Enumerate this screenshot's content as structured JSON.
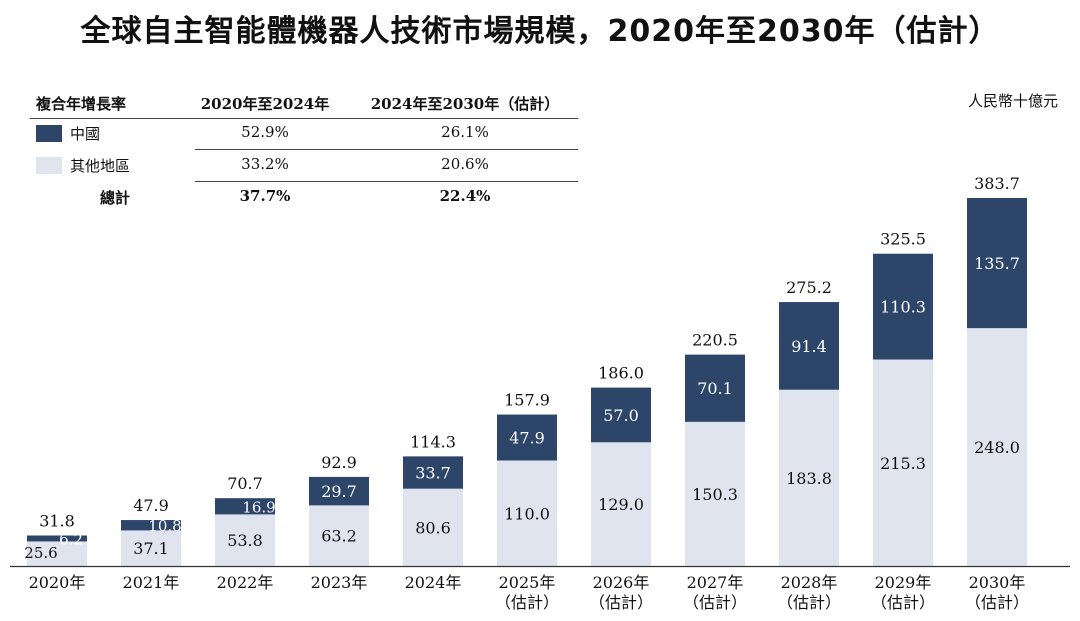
{
  "title": "全球自主智能體機器人技術市場規模，2020年至2030年（估計）",
  "unit_label": "人民幣十億元",
  "colors": {
    "china": "#2d4569",
    "other": "#dfe4ef",
    "axis": "#333333"
  },
  "cagr_table": {
    "header": {
      "label": "複合年增長率",
      "period1": "2020年至2024年",
      "period2": "2024年至2030年（估計）"
    },
    "rows": [
      {
        "label": "中國",
        "period1": "52.9%",
        "period2": "26.1%"
      },
      {
        "label": "其他地區",
        "period1": "33.2%",
        "period2": "20.6%"
      },
      {
        "label": "總計",
        "period1": "37.7%",
        "period2": "22.4%"
      }
    ]
  },
  "chart_data": {
    "type": "bar",
    "stacked": true,
    "categories": [
      [
        "2020年"
      ],
      [
        "2021年"
      ],
      [
        "2022年"
      ],
      [
        "2023年"
      ],
      [
        "2024年"
      ],
      [
        "2025年",
        "（估計）"
      ],
      [
        "2026年",
        "（估計）"
      ],
      [
        "2027年",
        "（估計）"
      ],
      [
        "2028年",
        "（估計）"
      ],
      [
        "2029年",
        "（估計）"
      ],
      [
        "2030年",
        "（估計）"
      ]
    ],
    "series": [
      {
        "name": "其他地區",
        "values": [
          25.6,
          37.1,
          53.8,
          63.2,
          80.6,
          110.0,
          129.0,
          150.3,
          183.8,
          215.3,
          248.0
        ]
      },
      {
        "name": "中國",
        "values": [
          6.2,
          10.8,
          16.9,
          29.7,
          33.7,
          47.9,
          57.0,
          70.1,
          91.4,
          110.3,
          135.7
        ]
      }
    ],
    "totals": [
      31.8,
      47.9,
      70.7,
      92.9,
      114.3,
      157.9,
      186.0,
      220.5,
      275.2,
      325.5,
      383.7
    ],
    "ylim": [
      0,
      383.7
    ],
    "grid": false,
    "legend": "top-left"
  }
}
